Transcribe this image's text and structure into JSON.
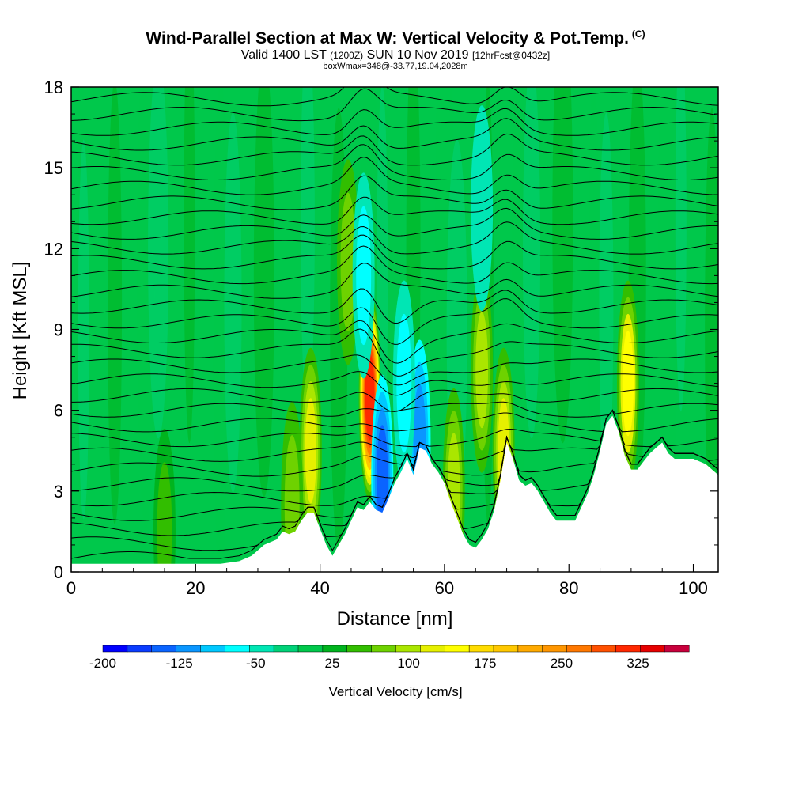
{
  "titles": {
    "main": "Wind-Parallel Section at Max W: Vertical Velocity & Pot.Temp.",
    "copyright": "(C)",
    "valid_a": "Valid 1400 LST",
    "valid_utc": "(1200Z)",
    "valid_b": "SUN 10 Nov 2019",
    "forecast": "[12hrFcst@0432z]",
    "boxinfo": "boxWmax=348@-33.77,19.04,2028m"
  },
  "chart_data": {
    "type": "heatmap",
    "xlabel": "Distance [nm]",
    "ylabel": "Height [Kft MSL]",
    "xlim": [
      0,
      104
    ],
    "ylim": [
      0,
      18
    ],
    "xticks": [
      "0",
      "20",
      "40",
      "60",
      "80",
      "100"
    ],
    "yticks": [
      "0",
      "3",
      "6",
      "9",
      "12",
      "15",
      "18"
    ],
    "colorbar": {
      "label": "Vertical Velocity [cm/s]",
      "range": [
        -200,
        375
      ],
      "step": 25,
      "tick_labels": [
        "-200",
        "-125",
        "-50",
        "25",
        "100",
        "175",
        "250",
        "325"
      ],
      "colors": [
        "#0000ff",
        "#0a3cff",
        "#0a64ff",
        "#0a96ff",
        "#00c8ff",
        "#00ffff",
        "#00e6b4",
        "#00d278",
        "#00c84b",
        "#00b41e",
        "#32be00",
        "#6ed200",
        "#aae600",
        "#e6f000",
        "#ffff00",
        "#ffdc00",
        "#ffc800",
        "#ffaa00",
        "#ff9600",
        "#ff7800",
        "#ff5000",
        "#ff2800",
        "#e60000",
        "#c8003c"
      ]
    },
    "terrain_profile": [
      [
        0,
        0.3
      ],
      [
        8,
        0.3
      ],
      [
        15,
        0.3
      ],
      [
        20,
        0.3
      ],
      [
        24,
        0.3
      ],
      [
        27,
        0.4
      ],
      [
        29,
        0.6
      ],
      [
        30,
        0.8
      ],
      [
        31,
        1.0
      ],
      [
        33,
        1.2
      ],
      [
        34,
        1.5
      ],
      [
        35,
        1.4
      ],
      [
        36,
        1.5
      ],
      [
        37,
        1.9
      ],
      [
        38,
        2.2
      ],
      [
        39,
        2.2
      ],
      [
        40,
        1.6
      ],
      [
        41,
        1.0
      ],
      [
        42,
        0.6
      ],
      [
        43,
        1.0
      ],
      [
        44,
        1.4
      ],
      [
        45,
        1.9
      ],
      [
        46,
        2.4
      ],
      [
        47,
        2.3
      ],
      [
        48,
        2.6
      ],
      [
        49,
        2.3
      ],
      [
        50,
        2.2
      ],
      [
        51,
        2.7
      ],
      [
        52,
        3.3
      ],
      [
        53,
        3.7
      ],
      [
        54,
        4.2
      ],
      [
        55,
        3.6
      ],
      [
        56,
        4.6
      ],
      [
        57,
        4.5
      ],
      [
        58,
        4.0
      ],
      [
        59,
        3.7
      ],
      [
        60,
        3.3
      ],
      [
        61,
        2.6
      ],
      [
        62,
        2.0
      ],
      [
        63,
        1.4
      ],
      [
        64,
        1.0
      ],
      [
        65,
        0.9
      ],
      [
        66,
        1.2
      ],
      [
        67,
        1.6
      ],
      [
        68,
        2.3
      ],
      [
        69,
        3.4
      ],
      [
        70,
        4.8
      ],
      [
        71,
        4.2
      ],
      [
        72,
        3.4
      ],
      [
        73,
        3.2
      ],
      [
        74,
        3.3
      ],
      [
        75,
        3.0
      ],
      [
        76,
        2.6
      ],
      [
        77,
        2.2
      ],
      [
        78,
        1.9
      ],
      [
        79,
        1.9
      ],
      [
        80,
        1.9
      ],
      [
        81,
        1.9
      ],
      [
        82,
        2.4
      ],
      [
        83,
        2.9
      ],
      [
        84,
        3.6
      ],
      [
        85,
        4.5
      ],
      [
        86,
        5.5
      ],
      [
        87,
        5.8
      ],
      [
        88,
        5.2
      ],
      [
        89,
        4.3
      ],
      [
        90,
        3.8
      ],
      [
        91,
        3.8
      ],
      [
        92,
        4.1
      ],
      [
        93,
        4.4
      ],
      [
        94,
        4.6
      ],
      [
        95,
        4.8
      ],
      [
        96,
        4.4
      ],
      [
        97,
        4.2
      ],
      [
        98,
        4.2
      ],
      [
        100,
        4.2
      ],
      [
        102,
        4.0
      ],
      [
        103,
        3.8
      ],
      [
        104,
        3.6
      ]
    ],
    "updraft_cores": [
      {
        "x": 48,
        "z": 6.5,
        "w": 348
      },
      {
        "x": 89.5,
        "z": 7.0,
        "w": 160
      },
      {
        "x": 38.5,
        "z": 4.5,
        "w": 140
      },
      {
        "x": 69.5,
        "z": 4.5,
        "w": 140
      },
      {
        "x": 61.5,
        "z": 3.0,
        "w": 110
      },
      {
        "x": 35.5,
        "z": 2.5,
        "w": 80
      },
      {
        "x": 15,
        "z": 1.5,
        "w": 60
      },
      {
        "x": 44.5,
        "z": 11.5,
        "w": 80
      },
      {
        "x": 66,
        "z": 7.5,
        "w": 100
      }
    ],
    "downdraft_cores": [
      {
        "x": 50,
        "z": 3.5,
        "w": -150
      },
      {
        "x": 56,
        "z": 4.8,
        "w": -110
      },
      {
        "x": 47,
        "z": 11.0,
        "w": -60
      },
      {
        "x": 53.5,
        "z": 7.0,
        "w": -55
      },
      {
        "x": 66,
        "z": 13.5,
        "w": -45
      }
    ]
  }
}
